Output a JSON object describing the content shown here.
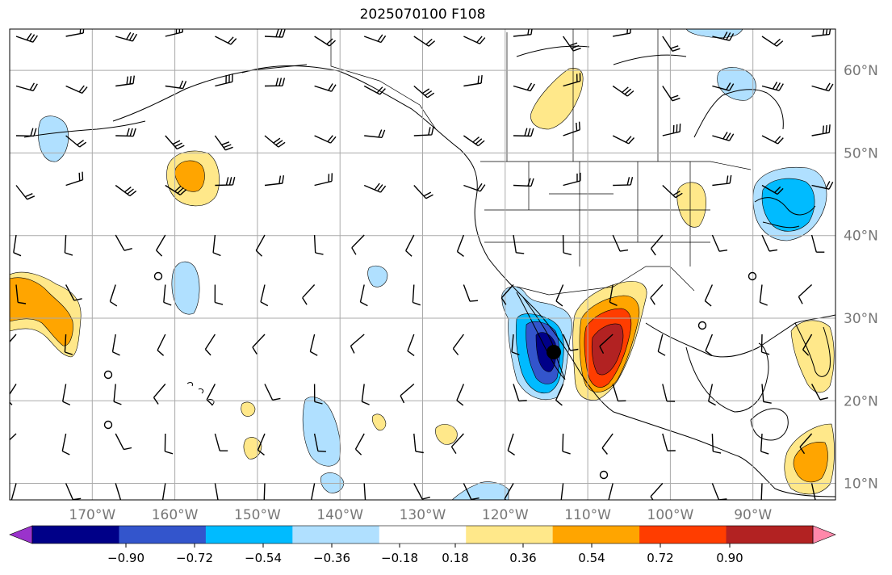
{
  "title": "2025070100 F108",
  "axes": {
    "lon_labels": [
      "170°W",
      "160°W",
      "150°W",
      "140°W",
      "130°W",
      "120°W",
      "110°W",
      "100°W",
      "90°W"
    ],
    "lat_labels": [
      "60°N",
      "50°N",
      "40°N",
      "30°N",
      "20°N",
      "10°N"
    ],
    "lon_values": [
      -170,
      -160,
      -150,
      -140,
      -130,
      -120,
      -110,
      -100,
      -90
    ],
    "lat_values": [
      60,
      50,
      40,
      30,
      20,
      10
    ],
    "lon_range": [
      -180,
      -80
    ],
    "lat_range": [
      8,
      65
    ],
    "grid": true
  },
  "colorbar": {
    "ticks": [
      "−0.90",
      "−0.72",
      "−0.54",
      "−0.36",
      "−0.18",
      "0.18",
      "0.36",
      "0.54",
      "0.72",
      "0.90"
    ],
    "tick_values": [
      -0.9,
      -0.72,
      -0.54,
      -0.36,
      -0.18,
      0.18,
      0.36,
      0.54,
      0.72,
      0.9
    ],
    "colors": [
      "#9a33cc",
      "#000088",
      "#3355cc",
      "#00bbff",
      "#b0e0ff",
      "#ffffff",
      "#ffe88a",
      "#ffa500",
      "#ff3d00",
      "#b22222",
      "#ff88aa"
    ],
    "extend": "both"
  },
  "colors": {
    "land_outline": "#000000",
    "grid": "#aaaaaa",
    "tick_label": "#777777",
    "barb": "#000000"
  }
}
